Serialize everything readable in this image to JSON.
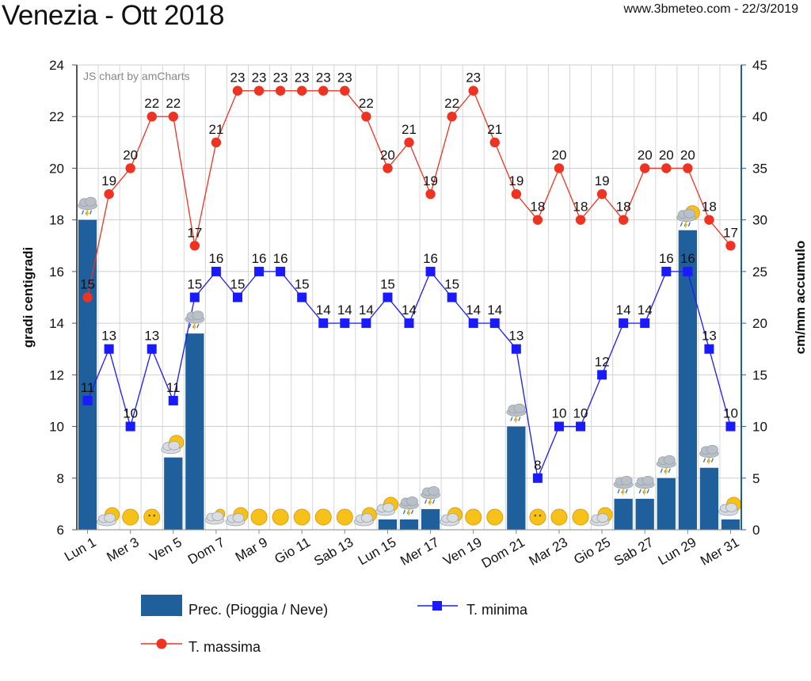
{
  "header": {
    "title": "Venezia - Ott 2018",
    "source": "www.3bmeteo.com - 22/3/2019",
    "credit": "JS chart by amCharts"
  },
  "colors": {
    "precip": "#1f5f9c",
    "tmin": "#1a1aff",
    "tmax": "#ee3322",
    "axis_left": "#555555",
    "axis_right": "#1f5f9c"
  },
  "chart_data": {
    "type": "bar+line",
    "title": "Venezia - Ott 2018",
    "days": [
      1,
      2,
      3,
      4,
      5,
      6,
      7,
      8,
      9,
      10,
      11,
      12,
      13,
      14,
      15,
      16,
      17,
      18,
      19,
      20,
      21,
      22,
      23,
      24,
      25,
      26,
      27,
      28,
      29,
      30,
      31
    ],
    "x_tick_labels": [
      "Lun 1",
      "Mer 3",
      "Ven 5",
      "Dom 7",
      "Mar 9",
      "Gio 11",
      "Sab 13",
      "Lun 15",
      "Mer 17",
      "Ven 19",
      "Dom 21",
      "Mar 23",
      "Gio 25",
      "Sab 27",
      "Lun 29",
      "Mer 31"
    ],
    "y_left": {
      "label": "gradi centigradi",
      "min": 6,
      "max": 24,
      "ticks": [
        6,
        8,
        10,
        12,
        14,
        16,
        18,
        20,
        22,
        24
      ]
    },
    "y_right": {
      "label": "cm/mm accumulo",
      "min": 0,
      "max": 45,
      "ticks": [
        0,
        5,
        10,
        15,
        20,
        25,
        30,
        35,
        40,
        45
      ]
    },
    "series": [
      {
        "name": "Prec. (Pioggia / Neve)",
        "type": "bar",
        "axis": "right",
        "values": [
          30,
          0,
          0,
          0,
          7,
          19,
          0,
          0,
          0,
          0,
          0,
          0,
          0,
          0,
          1,
          1,
          2,
          0,
          0,
          0,
          10,
          0,
          0,
          0,
          0,
          3,
          3,
          5,
          29,
          6,
          1
        ]
      },
      {
        "name": "T. minima",
        "type": "line",
        "marker": "square",
        "axis": "left",
        "values": [
          11,
          13,
          10,
          13,
          11,
          15,
          16,
          15,
          16,
          16,
          15,
          14,
          14,
          14,
          15,
          14,
          16,
          15,
          14,
          14,
          13,
          8,
          10,
          10,
          12,
          14,
          14,
          16,
          16,
          13,
          10
        ]
      },
      {
        "name": "T. massima",
        "type": "line",
        "marker": "circle",
        "axis": "left",
        "values": [
          15,
          19,
          20,
          22,
          22,
          17,
          21,
          23,
          23,
          23,
          23,
          23,
          23,
          22,
          20,
          21,
          19,
          22,
          23,
          21,
          19,
          18,
          20,
          18,
          19,
          18,
          20,
          20,
          20,
          18,
          17
        ]
      }
    ],
    "weather_icons": [
      "storm-rain",
      "sun-cloud",
      "sun",
      "sun-face",
      "sun-cloud",
      "storm-rain",
      "cloud-sun",
      "sun-cloud",
      "sun",
      "sun",
      "sun",
      "sun",
      "sun",
      "sun-cloud",
      "sun-cloud",
      "cloud-storm",
      "storm-rain",
      "sun-cloud",
      "sun",
      "sun",
      "storm-rain",
      "sun-face",
      "sun",
      "sun",
      "sun-cloud",
      "storm-rain",
      "storm-rain",
      "storm-rain",
      "storm-sun",
      "storm-rain",
      "sun-cloud"
    ],
    "legend": [
      "Prec. (Pioggia / Neve)",
      "T. minima",
      "T. massima"
    ],
    "legend_position": "bottom"
  }
}
